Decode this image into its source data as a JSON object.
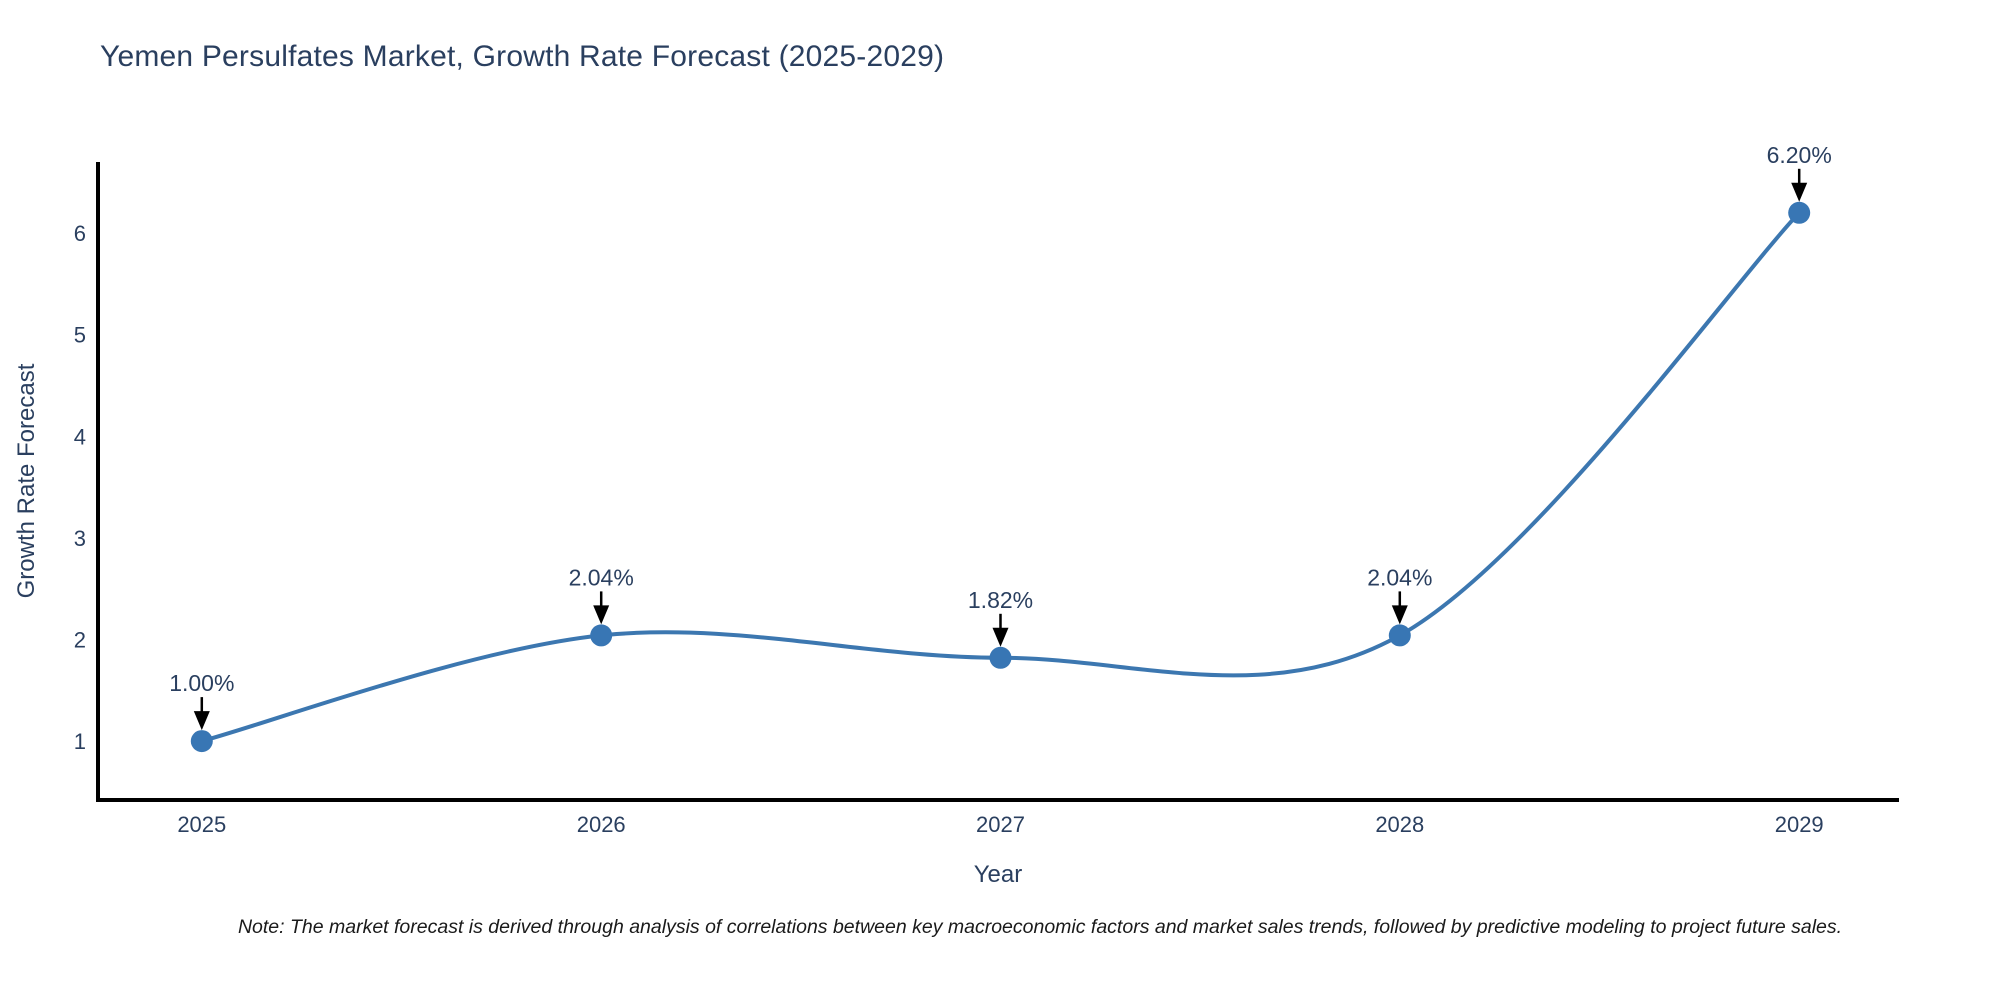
{
  "title": "Yemen Persulfates Market, Growth Rate Forecast (2025-2029)",
  "note": "Note: The market forecast is derived through analysis of correlations between key macroeconomic factors and market sales trends, followed by predictive modeling to project future sales.",
  "chart_data": {
    "type": "line",
    "line_shape": "spline",
    "title": "Yemen Persulfates Market, Growth Rate Forecast (2025-2029)",
    "xlabel": "Year",
    "ylabel": "Growth Rate Forecast",
    "x": [
      2025,
      2026,
      2027,
      2028,
      2029
    ],
    "y": [
      1.0,
      2.04,
      1.82,
      2.04,
      6.2
    ],
    "point_labels": [
      "1.00%",
      "2.04%",
      "1.82%",
      "2.04%",
      "6.20%"
    ],
    "xticks": [
      "2025",
      "2026",
      "2027",
      "2028",
      "2029"
    ],
    "yticks": [
      "1",
      "2",
      "3",
      "4",
      "5",
      "6"
    ],
    "xlim": [
      2024.74,
      2029.25
    ],
    "ylim": [
      0.42,
      6.7
    ],
    "grid": false,
    "legend": false,
    "colors": {
      "line": "#3c77b0",
      "marker": "#3876b4",
      "axis": "#000000",
      "text": "#2a3f5f",
      "arrow": "#000000",
      "note_text": "#1a1a1a",
      "background": "#ffffff"
    }
  }
}
